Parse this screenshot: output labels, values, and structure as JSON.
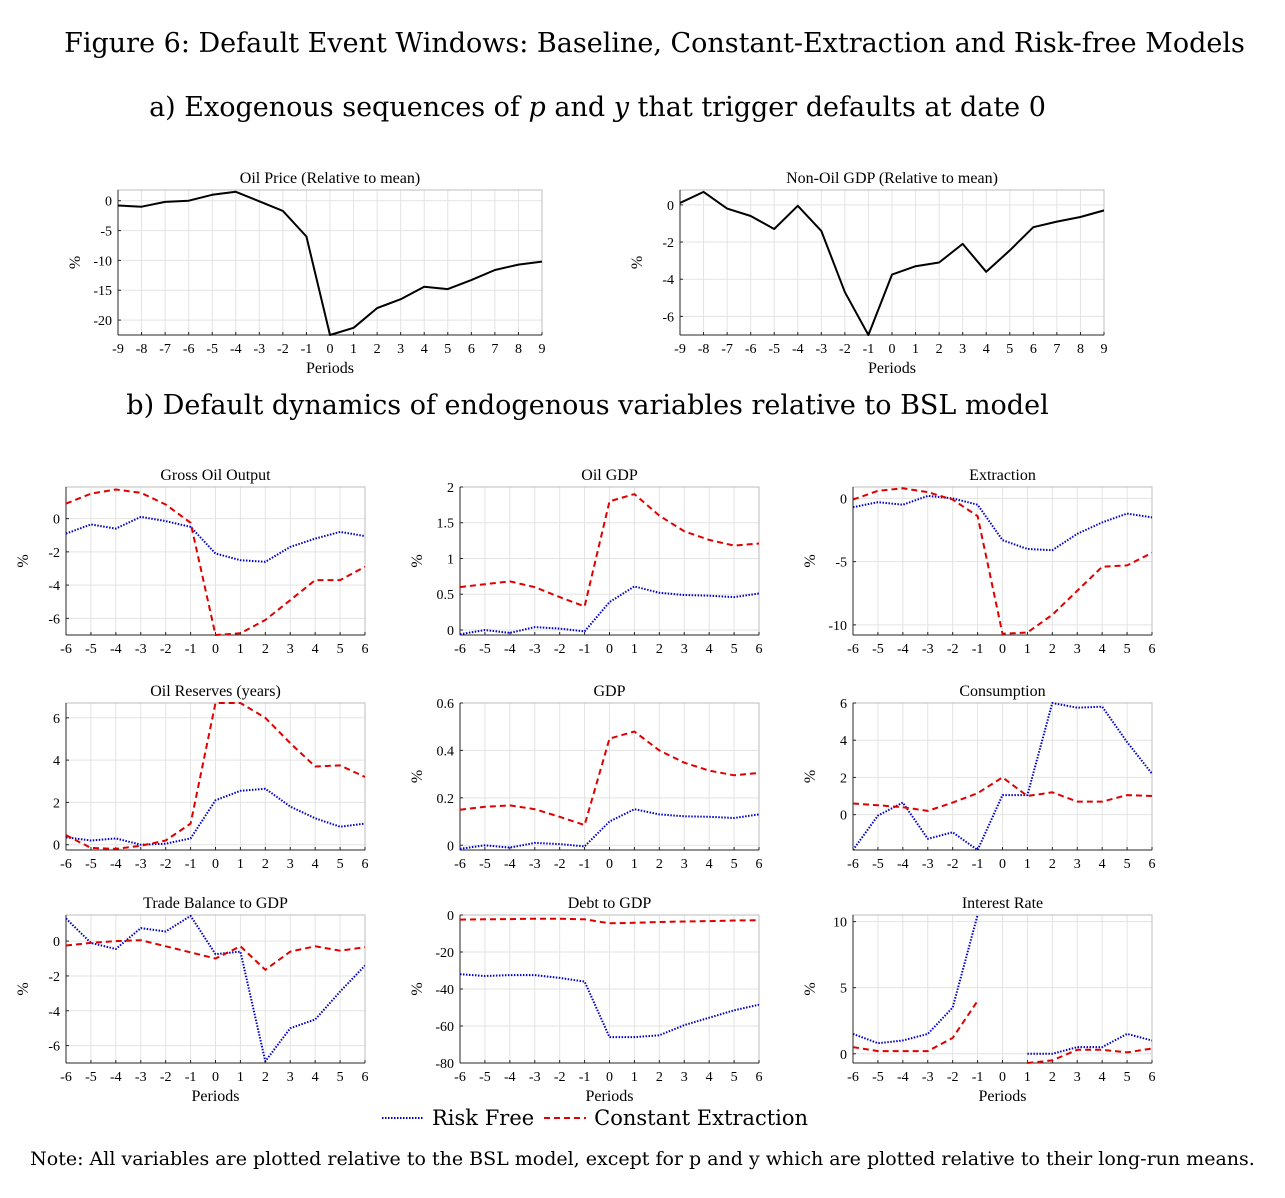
{
  "figure_title": "Figure 6: Default Event Windows: Baseline, Constant-Extraction and Risk-free Models",
  "section_a": "a) Exogenous sequences of p and y that trigger defaults at date 0",
  "section_b": "b) Default dynamics of endogenous variables relative to BSL model",
  "note": "Note: All variables are plotted relative to the BSL model, except for p and y which are plotted relative to their long-run means.",
  "legend": [
    {
      "name": "Risk Free",
      "color": "#0000cc",
      "style": "dotted"
    },
    {
      "name": "Constant Extraction",
      "color": "#e00000",
      "style": "dashed"
    }
  ],
  "chart_data": [
    {
      "type": "line",
      "title": "Oil Price (Relative to mean)",
      "xlabel": "Periods",
      "ylabel": "%",
      "xlim": [
        -9,
        9
      ],
      "ylim": [
        -22.5,
        1.8
      ],
      "xticks": [
        -9,
        -8,
        -7,
        -6,
        -5,
        -4,
        -3,
        -2,
        -1,
        0,
        1,
        2,
        3,
        4,
        5,
        6,
        7,
        8,
        9
      ],
      "yticks": [
        0,
        -5,
        -10,
        -15,
        -20
      ],
      "series": [
        {
          "style": "solid-black",
          "x": [
            -9,
            -8,
            -7,
            -6,
            -5,
            -4,
            -3,
            -2,
            -1,
            0,
            1,
            2,
            3,
            4,
            5,
            6,
            7,
            8,
            9
          ],
          "y": [
            -0.8,
            -1.0,
            -0.2,
            0.0,
            1.0,
            1.5,
            -0.1,
            -1.7,
            -6.0,
            -22.5,
            -21.3,
            -18.0,
            -16.5,
            -14.4,
            -14.8,
            -13.3,
            -11.6,
            -10.7,
            -10.2
          ]
        }
      ]
    },
    {
      "type": "line",
      "title": "Non-Oil GDP (Relative to mean)",
      "xlabel": "Periods",
      "ylabel": "%",
      "xlim": [
        -9,
        9
      ],
      "ylim": [
        -7,
        0.8
      ],
      "xticks": [
        -9,
        -8,
        -7,
        -6,
        -5,
        -4,
        -3,
        -2,
        -1,
        0,
        1,
        2,
        3,
        4,
        5,
        6,
        7,
        8,
        9
      ],
      "yticks": [
        0,
        -2,
        -4,
        -6
      ],
      "series": [
        {
          "style": "solid-black",
          "x": [
            -9,
            -8,
            -7,
            -6,
            -5,
            -4,
            -3,
            -2,
            -1,
            0,
            1,
            2,
            3,
            4,
            5,
            6,
            7,
            8,
            9
          ],
          "y": [
            0.1,
            0.7,
            -0.2,
            -0.6,
            -1.3,
            -0.05,
            -1.4,
            -4.7,
            -7.0,
            -3.75,
            -3.3,
            -3.1,
            -2.1,
            -3.6,
            -2.45,
            -1.2,
            -0.9,
            -0.65,
            -0.3
          ]
        }
      ]
    },
    {
      "type": "line",
      "title": "Gross Oil Output",
      "xlabel": "",
      "ylabel": "%",
      "xlim": [
        -6,
        6
      ],
      "ylim": [
        -7,
        1.9
      ],
      "xticks": [
        -6,
        -5,
        -4,
        -3,
        -2,
        -1,
        0,
        1,
        2,
        3,
        4,
        5,
        6
      ],
      "yticks": [
        0,
        -2,
        -4,
        -6
      ],
      "series": [
        {
          "name": "Risk Free",
          "x": [
            -6,
            -5,
            -4,
            -3,
            -2,
            -1,
            0,
            1,
            2,
            3,
            4,
            5,
            6
          ],
          "y": [
            -0.9,
            -0.35,
            -0.6,
            0.1,
            -0.15,
            -0.5,
            -2.1,
            -2.5,
            -2.6,
            -1.7,
            -1.2,
            -0.8,
            -1.05
          ]
        },
        {
          "name": "Constant Extraction",
          "x": [
            -6,
            -5,
            -4,
            -3,
            -2,
            -1,
            0,
            1,
            2,
            3,
            4,
            5,
            6
          ],
          "y": [
            0.9,
            1.5,
            1.75,
            1.55,
            0.85,
            -0.25,
            -7.0,
            -6.9,
            -6.1,
            -4.9,
            -3.7,
            -3.7,
            -2.9
          ]
        }
      ]
    },
    {
      "type": "line",
      "title": "Oil GDP",
      "xlabel": "",
      "ylabel": "%",
      "xlim": [
        -6,
        6
      ],
      "ylim": [
        -0.07,
        2.0
      ],
      "xticks": [
        -6,
        -5,
        -4,
        -3,
        -2,
        -1,
        0,
        1,
        2,
        3,
        4,
        5,
        6
      ],
      "yticks": [
        0,
        0.5,
        1,
        1.5,
        2
      ],
      "series": [
        {
          "name": "Risk Free",
          "x": [
            -6,
            -5,
            -4,
            -3,
            -2,
            -1,
            0,
            1,
            2,
            3,
            4,
            5,
            6
          ],
          "y": [
            -0.06,
            0.0,
            -0.04,
            0.04,
            0.02,
            -0.02,
            0.39,
            0.61,
            0.52,
            0.49,
            0.48,
            0.46,
            0.51
          ]
        },
        {
          "name": "Constant Extraction",
          "x": [
            -6,
            -5,
            -4,
            -3,
            -2,
            -1,
            0,
            1,
            2,
            3,
            4,
            5,
            6
          ],
          "y": [
            0.6,
            0.64,
            0.68,
            0.6,
            0.46,
            0.33,
            1.8,
            1.9,
            1.6,
            1.38,
            1.26,
            1.18,
            1.21
          ]
        }
      ]
    },
    {
      "type": "line",
      "title": "Extraction",
      "xlabel": "",
      "ylabel": "%",
      "xlim": [
        -6,
        6
      ],
      "ylim": [
        -10.8,
        0.9
      ],
      "xticks": [
        -6,
        -5,
        -4,
        -3,
        -2,
        -1,
        0,
        1,
        2,
        3,
        4,
        5,
        6
      ],
      "yticks": [
        0,
        -5,
        -10
      ],
      "series": [
        {
          "name": "Risk Free",
          "x": [
            -6,
            -5,
            -4,
            -3,
            -2,
            -1,
            0,
            1,
            2,
            3,
            4,
            5,
            6
          ],
          "y": [
            -0.7,
            -0.3,
            -0.5,
            0.2,
            0.0,
            -0.5,
            -3.3,
            -4.0,
            -4.1,
            -2.8,
            -1.9,
            -1.2,
            -1.5
          ]
        },
        {
          "name": "Constant Extraction",
          "x": [
            -6,
            -5,
            -4,
            -3,
            -2,
            -1,
            0,
            1,
            2,
            3,
            4,
            5,
            6
          ],
          "y": [
            -0.1,
            0.6,
            0.8,
            0.5,
            -0.1,
            -1.4,
            -10.7,
            -10.6,
            -9.2,
            -7.3,
            -5.4,
            -5.3,
            -4.3
          ]
        }
      ]
    },
    {
      "type": "line",
      "title": "Oil Reserves (years)",
      "xlabel": "",
      "ylabel": "",
      "xlim": [
        -6,
        6
      ],
      "ylim": [
        -0.25,
        6.7
      ],
      "xticks": [
        -6,
        -5,
        -4,
        -3,
        -2,
        -1,
        0,
        1,
        2,
        3,
        4,
        5,
        6
      ],
      "yticks": [
        0,
        2,
        4,
        6
      ],
      "series": [
        {
          "name": "Risk Free",
          "x": [
            -6,
            -5,
            -4,
            -3,
            -2,
            -1,
            0,
            1,
            2,
            3,
            4,
            5,
            6
          ],
          "y": [
            0.35,
            0.2,
            0.3,
            0.0,
            0.05,
            0.3,
            2.1,
            2.55,
            2.65,
            1.8,
            1.25,
            0.85,
            1.0
          ]
        },
        {
          "name": "Constant Extraction",
          "x": [
            -6,
            -5,
            -4,
            -3,
            -2,
            -1,
            0,
            1,
            2,
            3,
            4,
            5,
            6
          ],
          "y": [
            0.45,
            -0.15,
            -0.2,
            -0.05,
            0.2,
            1.0,
            6.7,
            6.7,
            6.0,
            4.8,
            3.7,
            3.75,
            3.2
          ]
        }
      ]
    },
    {
      "type": "line",
      "title": "GDP",
      "xlabel": "",
      "ylabel": "%",
      "xlim": [
        -6,
        6
      ],
      "ylim": [
        -0.02,
        0.6
      ],
      "xticks": [
        -6,
        -5,
        -4,
        -3,
        -2,
        -1,
        0,
        1,
        2,
        3,
        4,
        5,
        6
      ],
      "yticks": [
        0,
        0.2,
        0.4,
        0.6
      ],
      "series": [
        {
          "name": "Risk Free",
          "x": [
            -6,
            -5,
            -4,
            -3,
            -2,
            -1,
            0,
            1,
            2,
            3,
            4,
            5,
            6
          ],
          "y": [
            -0.015,
            0.0,
            -0.01,
            0.01,
            0.005,
            -0.005,
            0.1,
            0.152,
            0.13,
            0.122,
            0.12,
            0.115,
            0.13
          ]
        },
        {
          "name": "Constant Extraction",
          "x": [
            -6,
            -5,
            -4,
            -3,
            -2,
            -1,
            0,
            1,
            2,
            3,
            4,
            5,
            6
          ],
          "y": [
            0.15,
            0.162,
            0.168,
            0.152,
            0.12,
            0.085,
            0.45,
            0.48,
            0.4,
            0.348,
            0.315,
            0.295,
            0.305
          ]
        }
      ]
    },
    {
      "type": "line",
      "title": "Consumption",
      "xlabel": "",
      "ylabel": "%",
      "xlim": [
        -6,
        6
      ],
      "ylim": [
        -1.9,
        6.0
      ],
      "xticks": [
        -6,
        -5,
        -4,
        -3,
        -2,
        -1,
        0,
        1,
        2,
        3,
        4,
        5,
        6
      ],
      "yticks": [
        0,
        2,
        4,
        6
      ],
      "series": [
        {
          "name": "Risk Free",
          "x": [
            -6,
            -5,
            -4,
            -3,
            -2,
            -1,
            0,
            1,
            2,
            3,
            4,
            5,
            6
          ],
          "y": [
            -1.9,
            -0.05,
            0.65,
            -1.3,
            -0.95,
            -1.9,
            1.05,
            1.05,
            6.0,
            5.75,
            5.8,
            3.9,
            2.2
          ]
        },
        {
          "name": "Constant Extraction",
          "x": [
            -6,
            -5,
            -4,
            -3,
            -2,
            -1,
            0,
            1,
            2,
            3,
            4,
            5,
            6
          ],
          "y": [
            0.6,
            0.5,
            0.4,
            0.2,
            0.65,
            1.15,
            2.0,
            1.0,
            1.2,
            0.7,
            0.7,
            1.05,
            1.0
          ]
        }
      ]
    },
    {
      "type": "line",
      "title": "Trade Balance to GDP",
      "xlabel": "Periods",
      "ylabel": "%",
      "xlim": [
        -6,
        6
      ],
      "ylim": [
        -7,
        1.5
      ],
      "xticks": [
        -6,
        -5,
        -4,
        -3,
        -2,
        -1,
        0,
        1,
        2,
        3,
        4,
        5,
        6
      ],
      "yticks": [
        0,
        -2,
        -4,
        -6
      ],
      "series": [
        {
          "name": "Risk Free",
          "x": [
            -6,
            -5,
            -4,
            -3,
            -2,
            -1,
            0,
            1,
            2,
            3,
            4,
            5,
            6
          ],
          "y": [
            1.3,
            -0.1,
            -0.45,
            0.75,
            0.55,
            1.45,
            -0.75,
            -0.6,
            -6.9,
            -5.0,
            -4.5,
            -2.9,
            -1.4
          ]
        },
        {
          "name": "Constant Extraction",
          "x": [
            -6,
            -5,
            -4,
            -3,
            -2,
            -1,
            0,
            1,
            2,
            3,
            4,
            5,
            6
          ],
          "y": [
            -0.25,
            -0.1,
            0.0,
            0.05,
            -0.3,
            -0.65,
            -1.0,
            -0.3,
            -1.65,
            -0.6,
            -0.3,
            -0.55,
            -0.35
          ]
        }
      ]
    },
    {
      "type": "line",
      "title": "Debt to GDP",
      "xlabel": "Periods",
      "ylabel": "%",
      "xlim": [
        -6,
        6
      ],
      "ylim": [
        -80,
        0
      ],
      "xticks": [
        -6,
        -5,
        -4,
        -3,
        -2,
        -1,
        0,
        1,
        2,
        3,
        4,
        5,
        6
      ],
      "yticks": [
        0,
        -20,
        -40,
        -60,
        -80
      ],
      "series": [
        {
          "name": "Risk Free",
          "x": [
            -6,
            -5,
            -4,
            -3,
            -2,
            -1,
            0,
            1,
            2,
            3,
            4,
            5,
            6
          ],
          "y": [
            -32,
            -33,
            -32.5,
            -32.5,
            -34,
            -36,
            -66,
            -66,
            -65,
            -59.5,
            -55.5,
            -51.5,
            -48.5
          ]
        },
        {
          "name": "Constant Extraction",
          "x": [
            -6,
            -5,
            -4,
            -3,
            -2,
            -1,
            0,
            1,
            2,
            3,
            4,
            5,
            6
          ],
          "y": [
            -2.5,
            -2.3,
            -2.2,
            -2.0,
            -2.0,
            -2.3,
            -4.5,
            -4.2,
            -3.8,
            -3.5,
            -3.3,
            -3.0,
            -2.8
          ]
        }
      ]
    },
    {
      "type": "line",
      "title": "Interest Rate",
      "xlabel": "Periods",
      "ylabel": "%",
      "xlim": [
        -6,
        6
      ],
      "ylim": [
        -0.7,
        10.5
      ],
      "xticks": [
        -6,
        -5,
        -4,
        -3,
        -2,
        -1,
        0,
        1,
        2,
        3,
        4,
        5,
        6
      ],
      "yticks": [
        0,
        5,
        10
      ],
      "series": [
        {
          "name": "Risk Free",
          "x": [
            -6,
            -5,
            -4,
            -3,
            -2,
            -1,
            null,
            1,
            2,
            3,
            4,
            5,
            6
          ],
          "y": [
            1.5,
            0.8,
            1.0,
            1.5,
            3.5,
            10.5,
            null,
            0.0,
            0.0,
            0.5,
            0.5,
            1.5,
            1.0
          ]
        },
        {
          "name": "Constant Extraction",
          "x": [
            -6,
            -5,
            -4,
            -3,
            -2,
            -1,
            null,
            1,
            2,
            3,
            4,
            5,
            6
          ],
          "y": [
            0.5,
            0.2,
            0.2,
            0.2,
            1.2,
            4.0,
            null,
            -0.7,
            -0.5,
            0.3,
            0.3,
            0.1,
            0.4
          ]
        }
      ]
    }
  ]
}
